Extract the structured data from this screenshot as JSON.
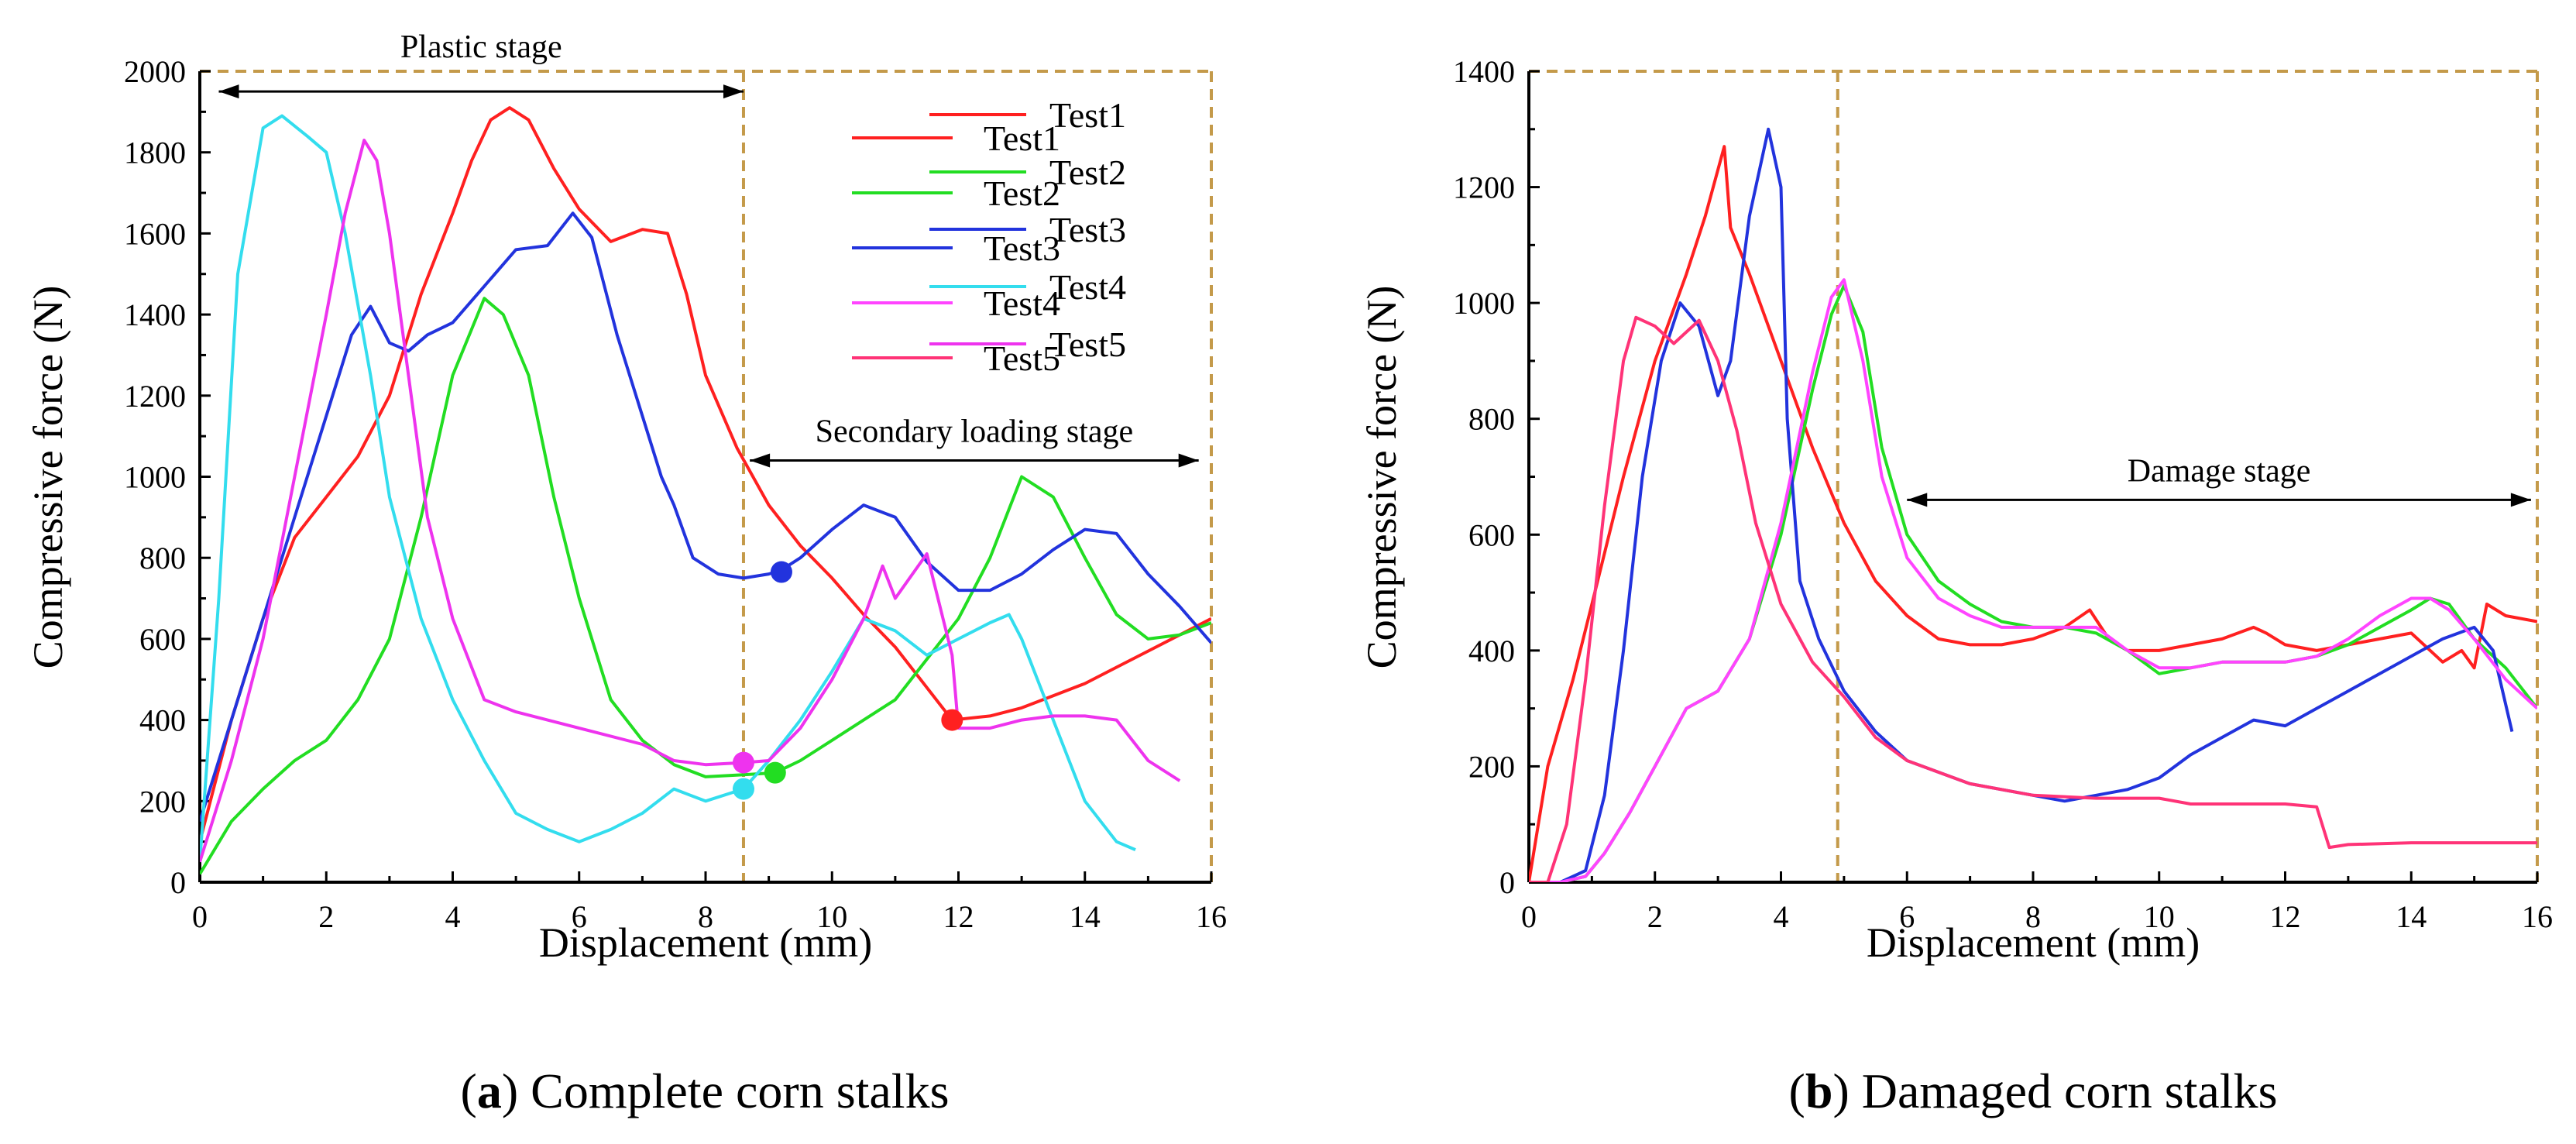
{
  "chart_data": [
    {
      "type": "line",
      "caption_letter": "a",
      "caption_text": ") Complete corn stalks",
      "caption_open": "(",
      "xlabel": "Displacement (mm)",
      "ylabel": "Compressive force (N)",
      "xlim": [
        0,
        16
      ],
      "ylim": [
        0,
        2000
      ],
      "xticks": [
        0,
        2,
        4,
        6,
        8,
        10,
        12,
        14,
        16
      ],
      "yticks": [
        0,
        200,
        400,
        600,
        800,
        1000,
        1200,
        1400,
        1600,
        1800,
        2000
      ],
      "stage_boundary_x": 8.6,
      "annotations": [
        {
          "label": "Plastic stage",
          "x_from": 0.3,
          "x_to": 8.6,
          "y": 1950
        },
        {
          "label": "Secondary loading stage",
          "x_from": 8.7,
          "x_to": 15.8,
          "y": 1040
        }
      ],
      "series": [
        {
          "name": "Test1",
          "color": "#ff2020",
          "x": [
            0,
            0.5,
            1,
            1.5,
            2,
            2.5,
            3,
            3.5,
            4,
            4.3,
            4.6,
            4.9,
            5.2,
            5.6,
            6,
            6.5,
            7,
            7.4,
            7.7,
            8,
            8.5,
            9,
            9.5,
            10,
            10.5,
            11,
            11.5,
            11.9,
            12.5,
            13,
            13.5,
            14,
            14.5,
            15,
            15.5,
            16
          ],
          "y": [
            100,
            400,
            650,
            850,
            950,
            1050,
            1200,
            1450,
            1650,
            1780,
            1880,
            1910,
            1880,
            1760,
            1660,
            1580,
            1610,
            1600,
            1450,
            1250,
            1070,
            930,
            830,
            750,
            660,
            580,
            480,
            400,
            410,
            430,
            460,
            490,
            530,
            570,
            610,
            650
          ]
        },
        {
          "name": "Test2",
          "color": "#22dd22",
          "x": [
            0,
            0.5,
            1,
            1.5,
            2,
            2.5,
            3,
            3.5,
            4,
            4.5,
            4.8,
            5.2,
            5.6,
            6,
            6.5,
            7,
            7.5,
            8,
            8.6,
            9.1,
            9.5,
            10,
            10.5,
            11,
            11.5,
            12,
            12.5,
            13,
            13.5,
            14,
            14.5,
            15,
            15.5,
            16
          ],
          "y": [
            20,
            150,
            230,
            300,
            350,
            450,
            600,
            900,
            1250,
            1440,
            1400,
            1250,
            950,
            700,
            450,
            350,
            290,
            260,
            265,
            270,
            300,
            350,
            400,
            450,
            550,
            650,
            800,
            1000,
            950,
            800,
            660,
            600,
            610,
            640
          ]
        },
        {
          "name": "Test3",
          "color": "#2233dd",
          "x": [
            0,
            0.5,
            1,
            1.5,
            2,
            2.4,
            2.7,
            3,
            3.3,
            3.6,
            4,
            4.5,
            5,
            5.5,
            5.9,
            6.2,
            6.6,
            7,
            7.3,
            7.5,
            7.8,
            8.2,
            8.6,
            9,
            9.2,
            9.5,
            10,
            10.5,
            11,
            11.5,
            12,
            12.5,
            13,
            13.5,
            14,
            14.5,
            15,
            15.5,
            16
          ],
          "y": [
            150,
            400,
            650,
            900,
            1150,
            1350,
            1420,
            1330,
            1310,
            1350,
            1380,
            1470,
            1560,
            1570,
            1650,
            1590,
            1350,
            1150,
            1000,
            930,
            800,
            760,
            750,
            760,
            770,
            800,
            870,
            930,
            900,
            790,
            720,
            720,
            760,
            820,
            870,
            860,
            760,
            680,
            590
          ]
        },
        {
          "name": "Test4",
          "color": "#33ddee",
          "x": [
            0,
            0.3,
            0.6,
            1,
            1.3,
            1.7,
            2,
            2.3,
            2.7,
            3,
            3.5,
            4,
            4.5,
            5,
            5.5,
            6,
            6.5,
            7,
            7.5,
            8,
            8.6,
            9,
            9.5,
            10,
            10.5,
            11,
            11.5,
            12,
            12.5,
            12.8,
            13,
            13.5,
            14,
            14.5,
            14.8
          ],
          "y": [
            50,
            700,
            1500,
            1860,
            1890,
            1840,
            1800,
            1600,
            1250,
            950,
            650,
            450,
            300,
            170,
            130,
            100,
            130,
            170,
            230,
            200,
            230,
            300,
            400,
            520,
            650,
            620,
            560,
            600,
            640,
            660,
            600,
            400,
            200,
            100,
            80
          ]
        },
        {
          "name": "Test5",
          "color": "#ee33ee",
          "x": [
            0,
            0.5,
            1,
            1.5,
            2,
            2.3,
            2.6,
            2.8,
            3,
            3.3,
            3.6,
            4,
            4.5,
            5,
            6,
            7,
            7.5,
            8,
            8.6,
            9,
            9.5,
            10,
            10.5,
            10.8,
            11,
            11.5,
            11.9,
            12,
            12.5,
            13,
            13.5,
            14,
            14.5,
            15,
            15.5
          ],
          "y": [
            50,
            300,
            600,
            1000,
            1400,
            1650,
            1830,
            1780,
            1600,
            1250,
            900,
            650,
            450,
            420,
            380,
            340,
            300,
            290,
            295,
            300,
            380,
            500,
            650,
            780,
            700,
            810,
            560,
            380,
            380,
            400,
            410,
            410,
            400,
            300,
            250
          ]
        }
      ],
      "markers": [
        {
          "series": "Test1",
          "x": 11.9,
          "y": 400
        },
        {
          "series": "Test2",
          "x": 9.1,
          "y": 270
        },
        {
          "series": "Test3",
          "x": 9.2,
          "y": 765
        },
        {
          "series": "Test4",
          "x": 8.6,
          "y": 230
        },
        {
          "series": "Test5",
          "x": 8.6,
          "y": 295
        }
      ]
    },
    {
      "type": "line",
      "caption_letter": "b",
      "caption_text": ") Damaged corn stalks",
      "caption_open": "(",
      "xlabel": "Displacement (mm)",
      "ylabel": "Compressive force (N)",
      "xlim": [
        0,
        16
      ],
      "ylim": [
        0,
        1400
      ],
      "xticks": [
        0,
        2,
        4,
        6,
        8,
        10,
        12,
        14,
        16
      ],
      "yticks": [
        0,
        200,
        400,
        600,
        800,
        1000,
        1200,
        1400
      ],
      "stage_boundary_x": 4.9,
      "annotations": [
        {
          "label": "Damage stage",
          "x_from": 6.0,
          "x_to": 15.9,
          "y": 660
        }
      ],
      "series": [
        {
          "name": "Test1",
          "color": "#ff2020",
          "x": [
            0,
            0.3,
            0.7,
            1,
            1.5,
            2,
            2.5,
            2.8,
            3.1,
            3.2,
            3.5,
            4,
            4.5,
            5,
            5.5,
            6,
            6.5,
            7,
            7.5,
            8,
            8.5,
            8.9,
            9.2,
            9.5,
            10,
            10.5,
            11,
            11.5,
            11.7,
            12,
            12.5,
            13,
            13.5,
            14,
            14.5,
            14.8,
            15,
            15.2,
            15.5,
            16
          ],
          "y": [
            0,
            200,
            350,
            480,
            700,
            900,
            1050,
            1150,
            1270,
            1130,
            1050,
            900,
            750,
            620,
            520,
            460,
            420,
            410,
            410,
            420,
            440,
            470,
            420,
            400,
            400,
            410,
            420,
            440,
            430,
            410,
            400,
            410,
            420,
            430,
            380,
            400,
            370,
            480,
            460,
            450
          ]
        },
        {
          "name": "Test2",
          "color": "#22dd22",
          "x": [
            0,
            0.5,
            0.9,
            1.2,
            1.6,
            2,
            2.5,
            3,
            3.5,
            4,
            4.5,
            4.8,
            5,
            5.3,
            5.6,
            6,
            6.5,
            7,
            7.5,
            8,
            8.5,
            9,
            9.5,
            10,
            10.5,
            11,
            11.5,
            12,
            12.5,
            13,
            13.5,
            14,
            14.3,
            14.6,
            15,
            15.5,
            16
          ],
          "y": [
            0,
            0,
            10,
            50,
            120,
            200,
            300,
            330,
            420,
            600,
            850,
            980,
            1030,
            950,
            750,
            600,
            520,
            480,
            450,
            440,
            440,
            430,
            400,
            360,
            370,
            380,
            380,
            380,
            390,
            410,
            440,
            470,
            490,
            480,
            420,
            370,
            300
          ]
        },
        {
          "name": "Test3",
          "color": "#2233dd",
          "x": [
            0,
            0.5,
            0.9,
            1.2,
            1.5,
            1.8,
            2.1,
            2.4,
            2.7,
            3,
            3.2,
            3.5,
            3.8,
            4,
            4.1,
            4.3,
            4.6,
            5,
            5.5,
            6,
            7,
            8,
            8.5,
            9,
            9.5,
            10,
            10.5,
            11,
            11.5,
            12,
            12.5,
            13,
            13.5,
            14,
            14.5,
            15,
            15.3,
            15.6
          ],
          "y": [
            0,
            0,
            20,
            150,
            400,
            700,
            900,
            1000,
            960,
            840,
            900,
            1150,
            1300,
            1200,
            800,
            520,
            420,
            330,
            260,
            210,
            170,
            150,
            140,
            150,
            160,
            180,
            220,
            250,
            280,
            270,
            300,
            330,
            360,
            390,
            420,
            440,
            400,
            260
          ]
        },
        {
          "name": "Test4",
          "color": "#ff44ff",
          "x": [
            0,
            0.5,
            0.9,
            1.2,
            1.6,
            2,
            2.5,
            3,
            3.5,
            4,
            4.5,
            4.8,
            5,
            5.3,
            5.6,
            6,
            6.5,
            7,
            7.5,
            8,
            8.5,
            9,
            9.5,
            10,
            10.5,
            11,
            11.5,
            12,
            12.5,
            13,
            13.5,
            14,
            14.3,
            14.6,
            15,
            15.5,
            16
          ],
          "y": [
            0,
            0,
            10,
            50,
            120,
            200,
            300,
            330,
            420,
            620,
            880,
            1010,
            1040,
            900,
            700,
            560,
            490,
            460,
            440,
            440,
            440,
            440,
            400,
            370,
            370,
            380,
            380,
            380,
            390,
            420,
            460,
            490,
            490,
            470,
            420,
            350,
            300
          ]
        },
        {
          "name": "Test5",
          "color": "#ff3377",
          "x": [
            0,
            0.3,
            0.6,
            0.9,
            1.2,
            1.5,
            1.7,
            2,
            2.3,
            2.7,
            3,
            3.3,
            3.6,
            4,
            4.5,
            5,
            5.5,
            6,
            7,
            8,
            9,
            10,
            10.5,
            11,
            12,
            12.5,
            12.7,
            13,
            14,
            15,
            16
          ],
          "y": [
            0,
            0,
            100,
            350,
            650,
            900,
            975,
            960,
            930,
            970,
            900,
            780,
            620,
            480,
            380,
            320,
            250,
            210,
            170,
            150,
            145,
            145,
            135,
            135,
            135,
            130,
            60,
            65,
            68,
            68,
            68
          ]
        }
      ],
      "markers": []
    }
  ]
}
